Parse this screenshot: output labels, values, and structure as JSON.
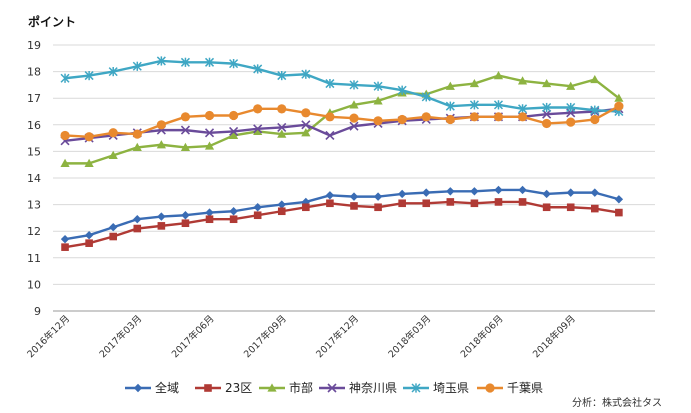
{
  "chart_data": {
    "type": "line",
    "ylabel": "ポイント",
    "ylim": [
      9,
      19
    ],
    "yticks": [
      9,
      10,
      11,
      12,
      13,
      14,
      15,
      16,
      17,
      18,
      19
    ],
    "grid": true,
    "legend_position": "bottom",
    "source": "分析：株式会社タス",
    "x": [
      "2016年12月",
      "2017年01月",
      "2017年02月",
      "2017年03月",
      "2017年04月",
      "2017年05月",
      "2017年06月",
      "2017年07月",
      "2017年08月",
      "2017年09月",
      "2017年10月",
      "2017年11月",
      "2017年12月",
      "2018年01月",
      "2018年02月",
      "2018年03月",
      "2018年04月",
      "2018年05月",
      "2018年06月",
      "2018年07月",
      "2018年08月",
      "2018年09月",
      "2018年10月",
      "2018年11月",
      "2018年12月"
    ],
    "x_tick_labels": [
      "2016年12月",
      "2017年03月",
      "2017年06月",
      "2017年09月",
      "2017年12月",
      "2018年03月",
      "2018年06月",
      "2018年09月"
    ],
    "series": [
      {
        "name": "全域",
        "color": "#3a6cb4",
        "marker": "diamond",
        "values": [
          11.7,
          11.85,
          12.15,
          12.45,
          12.55,
          12.6,
          12.7,
          12.75,
          12.9,
          13.0,
          13.1,
          13.35,
          13.3,
          13.3,
          13.4,
          13.45,
          13.5,
          13.5,
          13.55,
          13.55,
          13.4,
          13.45,
          13.45,
          13.2,
          null
        ]
      },
      {
        "name": "23区",
        "color": "#b03a35",
        "marker": "square",
        "values": [
          11.4,
          11.55,
          11.8,
          12.1,
          12.2,
          12.3,
          12.45,
          12.45,
          12.6,
          12.75,
          12.9,
          13.05,
          12.95,
          12.9,
          13.05,
          13.05,
          13.1,
          13.05,
          13.1,
          13.1,
          12.9,
          12.9,
          12.85,
          12.7,
          null
        ]
      },
      {
        "name": "市部",
        "color": "#8db341",
        "marker": "triangle",
        "values": [
          14.55,
          14.55,
          14.85,
          15.15,
          15.25,
          15.15,
          15.2,
          15.6,
          15.75,
          15.65,
          15.7,
          16.45,
          16.75,
          16.9,
          17.2,
          17.15,
          17.45,
          17.55,
          17.85,
          17.65,
          17.55,
          17.45,
          17.7,
          17.0,
          null
        ]
      },
      {
        "name": "神奈川県",
        "color": "#6a4b9a",
        "marker": "x",
        "values": [
          15.4,
          15.5,
          15.6,
          15.7,
          15.8,
          15.8,
          15.7,
          15.75,
          15.85,
          15.9,
          16.0,
          15.6,
          15.95,
          16.05,
          16.15,
          16.2,
          16.25,
          16.3,
          16.3,
          16.3,
          16.4,
          16.45,
          16.5,
          16.6,
          null
        ]
      },
      {
        "name": "埼玉県",
        "color": "#3fa7c4",
        "marker": "asterisk",
        "values": [
          17.75,
          17.85,
          18.0,
          18.2,
          18.4,
          18.35,
          18.35,
          18.3,
          18.1,
          17.85,
          17.9,
          17.55,
          17.5,
          17.45,
          17.3,
          17.05,
          16.7,
          16.75,
          16.75,
          16.6,
          16.65,
          16.65,
          16.55,
          16.5,
          null
        ]
      },
      {
        "name": "千葉県",
        "color": "#e8892e",
        "marker": "circle",
        "values": [
          15.6,
          15.55,
          15.7,
          15.65,
          16.0,
          16.3,
          16.35,
          16.35,
          16.6,
          16.6,
          16.45,
          16.3,
          16.25,
          16.15,
          16.2,
          16.3,
          16.2,
          16.3,
          16.3,
          16.3,
          16.05,
          16.1,
          16.2,
          16.7,
          null
        ]
      }
    ]
  }
}
